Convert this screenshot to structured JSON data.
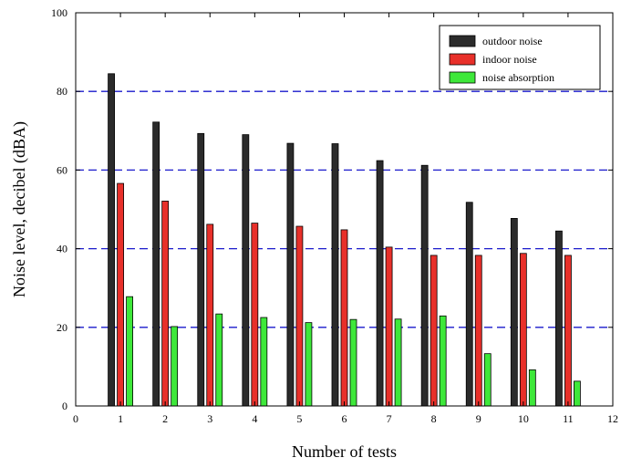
{
  "chart_data": {
    "type": "bar",
    "title": "",
    "xlabel": "Number of tests",
    "ylabel": "Noise level, decibel (dBA)",
    "xlim": [
      0,
      12
    ],
    "ylim": [
      0,
      100
    ],
    "x_ticks": [
      0,
      1,
      2,
      3,
      4,
      5,
      6,
      7,
      8,
      9,
      10,
      11,
      12
    ],
    "y_ticks": [
      0,
      20,
      40,
      60,
      80,
      100
    ],
    "x_tick_labels": [
      "0",
      "1",
      "2",
      "3",
      "4",
      "5",
      "6",
      "7",
      "8",
      "9",
      "10",
      "11",
      "12"
    ],
    "y_tick_labels": [
      "0",
      "20",
      "40",
      "60",
      "80",
      "100"
    ],
    "categories": [
      1,
      2,
      3,
      4,
      5,
      6,
      7,
      8,
      9,
      10,
      11
    ],
    "series": [
      {
        "name": "outdoor noise",
        "color": "#2b2b2b",
        "values": [
          84.5,
          72.2,
          69.3,
          69.0,
          66.8,
          66.7,
          62.4,
          61.2,
          51.8,
          47.7,
          44.5
        ]
      },
      {
        "name": "indoor noise",
        "color": "#e8302a",
        "values": [
          56.6,
          52.1,
          46.2,
          46.5,
          45.7,
          44.8,
          40.4,
          38.3,
          38.3,
          38.8,
          38.3
        ]
      },
      {
        "name": "noise absorption",
        "color": "#3ee83a",
        "values": [
          27.8,
          20.2,
          23.4,
          22.5,
          21.2,
          22.0,
          22.1,
          22.9,
          13.3,
          9.2,
          6.3
        ]
      }
    ],
    "gridlines": {
      "axis": "y",
      "values": [
        20,
        40,
        60,
        80
      ],
      "style": "dashed",
      "color": "#1a1acc"
    },
    "legend": {
      "placement": "top-right"
    }
  }
}
